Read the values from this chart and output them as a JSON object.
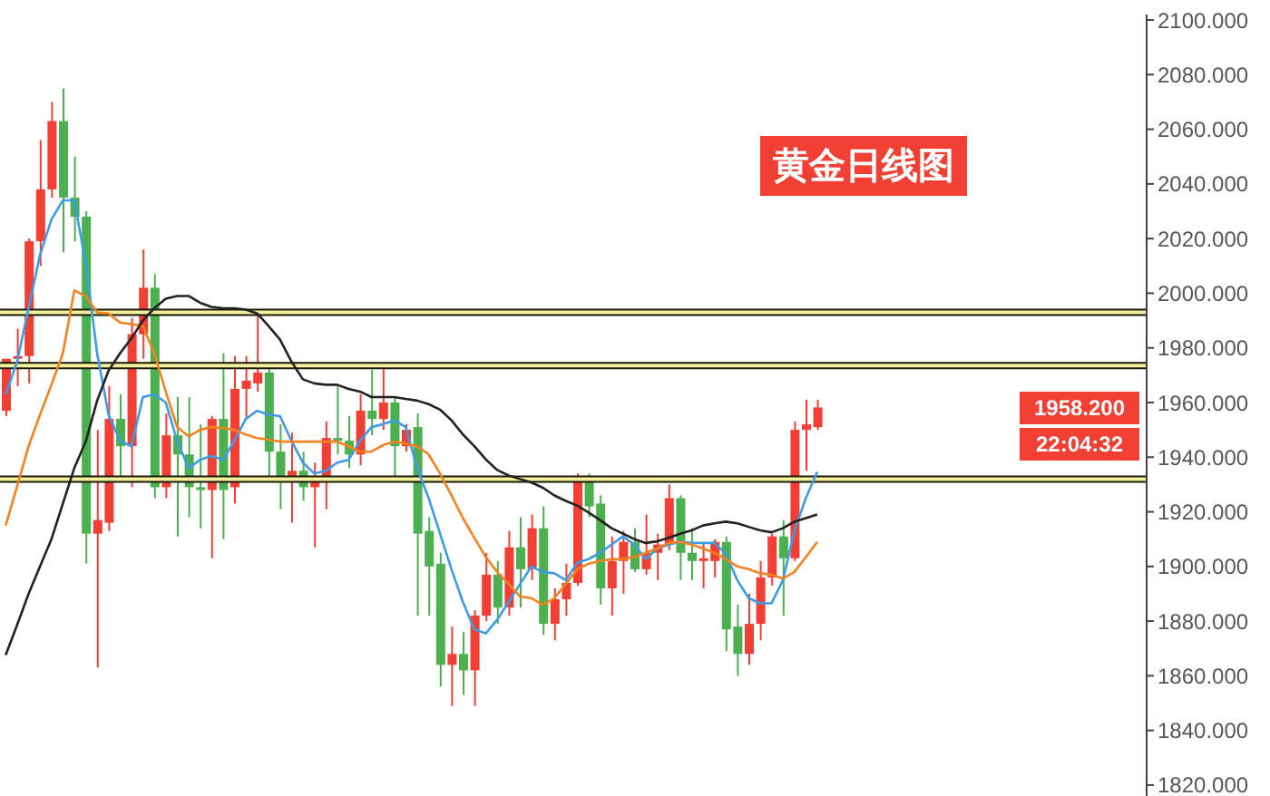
{
  "chart_data": {
    "type": "candlestick",
    "title": "黄金日线图",
    "categories": [
      null,
      null,
      null,
      null,
      null,
      null,
      null,
      null,
      null,
      null,
      null,
      null,
      null,
      null,
      null,
      null,
      null,
      null,
      null,
      null,
      null,
      null,
      null,
      null,
      null,
      null,
      null,
      null,
      null,
      null,
      null,
      null,
      null,
      null,
      null,
      null,
      null,
      null,
      null,
      null,
      null,
      null,
      null,
      null,
      null,
      null,
      null,
      null,
      null,
      null,
      null,
      null,
      null,
      null,
      null,
      null,
      null,
      null,
      null,
      null,
      null,
      null,
      null,
      null,
      null,
      null,
      null,
      null,
      null,
      null,
      null,
      null
    ],
    "ohlc": [
      [
        1957,
        1976,
        1955,
        1976
      ],
      [
        1976,
        1987,
        1966,
        1977
      ],
      [
        1977,
        2020,
        1967,
        2019
      ],
      [
        2019,
        2056,
        2010,
        2038
      ],
      [
        2038,
        2070,
        2035,
        2063
      ],
      [
        2063,
        2075,
        2015,
        2035
      ],
      [
        2035,
        2050,
        2019,
        2028
      ],
      [
        2028,
        2030,
        1901,
        1912
      ],
      [
        1912,
        1950,
        1863,
        1917
      ],
      [
        1916,
        1966,
        1913,
        1954
      ],
      [
        1954,
        1963,
        1932,
        1944
      ],
      [
        1944,
        1991,
        1929,
        1985
      ],
      [
        1985,
        2016,
        1976,
        2002
      ],
      [
        2002,
        2007,
        1925,
        1929
      ],
      [
        1929,
        1956,
        1925,
        1948
      ],
      [
        1948,
        1962,
        1911,
        1941
      ],
      [
        1941,
        1962,
        1918,
        1929
      ],
      [
        1929,
        1952,
        1914,
        1928
      ],
      [
        1928,
        1955,
        1903,
        1954
      ],
      [
        1954,
        1978,
        1910,
        1928
      ],
      [
        1929,
        1977,
        1923,
        1965
      ],
      [
        1965,
        1977,
        1954,
        1968
      ],
      [
        1967,
        1993,
        1964,
        1971
      ],
      [
        1971,
        1974,
        1933,
        1942
      ],
      [
        1942,
        1952,
        1921,
        1931
      ],
      [
        1931,
        1949,
        1916,
        1935
      ],
      [
        1935,
        1942,
        1924,
        1929
      ],
      [
        1929,
        1938,
        1907,
        1932
      ],
      [
        1932,
        1953,
        1921,
        1947
      ],
      [
        1947,
        1966,
        1941,
        1946
      ],
      [
        1946,
        1955,
        1936,
        1941
      ],
      [
        1941,
        1963,
        1937,
        1957
      ],
      [
        1957,
        1972,
        1948,
        1954
      ],
      [
        1954,
        1974,
        1950,
        1960
      ],
      [
        1960,
        1962,
        1933,
        1944
      ],
      [
        1944,
        1952,
        1942,
        1950
      ],
      [
        1951,
        1956,
        1882,
        1912
      ],
      [
        1913,
        1918,
        1882,
        1900
      ],
      [
        1901,
        1905,
        1856,
        1864
      ],
      [
        1864,
        1878,
        1849,
        1868
      ],
      [
        1868,
        1876,
        1853,
        1862
      ],
      [
        1862,
        1884,
        1849,
        1882
      ],
      [
        1882,
        1905,
        1880,
        1897
      ],
      [
        1897,
        1902,
        1879,
        1885
      ],
      [
        1885,
        1913,
        1882,
        1907
      ],
      [
        1907,
        1918,
        1885,
        1899
      ],
      [
        1899,
        1919,
        1895,
        1914
      ],
      [
        1914,
        1922,
        1875,
        1879
      ],
      [
        1879,
        1892,
        1873,
        1888
      ],
      [
        1888,
        1901,
        1882,
        1894
      ],
      [
        1894,
        1934,
        1893,
        1931
      ],
      [
        1931,
        1934,
        1918,
        1922
      ],
      [
        1923,
        1926,
        1886,
        1892
      ],
      [
        1892,
        1911,
        1882,
        1902
      ],
      [
        1902,
        1913,
        1890,
        1909
      ],
      [
        1909,
        1914,
        1898,
        1899
      ],
      [
        1899,
        1919,
        1897,
        1905
      ],
      [
        1905,
        1912,
        1895,
        1908
      ],
      [
        1908,
        1930,
        1906,
        1925
      ],
      [
        1925,
        1926,
        1895,
        1905
      ],
      [
        1905,
        1914,
        1895,
        1902
      ],
      [
        1902,
        1909,
        1892,
        1903
      ],
      [
        1902,
        1910,
        1896,
        1909
      ],
      [
        1909,
        1911,
        1869,
        1877
      ],
      [
        1878,
        1886,
        1860,
        1868
      ],
      [
        1868,
        1890,
        1864,
        1879
      ],
      [
        1879,
        1902,
        1873,
        1896
      ],
      [
        1896,
        1912,
        1893,
        1911
      ],
      [
        1911,
        1917,
        1882,
        1903
      ],
      [
        1903,
        1953,
        1902,
        1950
      ],
      [
        1950,
        1961,
        1935,
        1952
      ],
      [
        1951,
        1961,
        1950,
        1958.2
      ]
    ],
    "colors": [
      "#f23f33",
      "#f23f33",
      "#f23f33",
      "#f23f33",
      "#f23f33",
      "#4caf50",
      "#4caf50",
      "#4caf50",
      "#f23f33",
      "#f23f33",
      "#4caf50",
      "#f23f33",
      "#f23f33",
      "#4caf50",
      "#f23f33",
      "#4caf50",
      "#4caf50",
      "#4caf50",
      "#f23f33",
      "#4caf50",
      "#f23f33",
      "#f23f33",
      "#f23f33",
      "#4caf50",
      "#4caf50",
      "#f23f33",
      "#4caf50",
      "#f23f33",
      "#f23f33",
      "#4caf50",
      "#4caf50",
      "#f23f33",
      "#4caf50",
      "#f23f33",
      "#4caf50",
      "#f23f33",
      "#4caf50",
      "#4caf50",
      "#4caf50",
      "#f23f33",
      "#4caf50",
      "#f23f33",
      "#f23f33",
      "#4caf50",
      "#f23f33",
      "#4caf50",
      "#f23f33",
      "#4caf50",
      "#f23f33",
      "#f23f33",
      "#f23f33",
      "#4caf50",
      "#4caf50",
      "#f23f33",
      "#f23f33",
      "#4caf50",
      "#f23f33",
      "#f23f33",
      "#f23f33",
      "#4caf50",
      "#4caf50",
      "#f23f33",
      "#f23f33",
      "#4caf50",
      "#4caf50",
      "#f23f33",
      "#f23f33",
      "#f23f33",
      "#4caf50",
      "#f23f33",
      "#f23f33",
      "#f23f33"
    ],
    "series": [
      {
        "type": "line",
        "color": "#3d9be9",
        "values": [
          1963,
          1975,
          1994.5,
          2014,
          2027,
          2034,
          2034,
          2011,
          1978,
          1955.5,
          1946,
          1944,
          1962,
          1963,
          1960,
          1946,
          1936,
          1939,
          1940.5,
          1939,
          1946,
          1954,
          1957,
          1955.5,
          1955,
          1946,
          1938,
          1934,
          1935,
          1938,
          1939,
          1946,
          1951,
          1952,
          1953.5,
          1951,
          1936,
          1925,
          1912,
          1899,
          1887,
          1877,
          1875.5,
          1880.5,
          1887,
          1893.6,
          1900,
          1898,
          1897.5,
          1895,
          1901.4,
          1902.7,
          1905,
          1908,
          1911,
          1908,
          1902.7,
          1906.6,
          1908,
          1909,
          1908.6,
          1908.6,
          1908.6,
          1904.7,
          1895,
          1888.4,
          1886.5,
          1886.5,
          1895,
          1913,
          1925,
          1934.6
        ]
      },
      {
        "type": "line",
        "color": "#f5821f",
        "values": [
          1915,
          1929.4,
          1944,
          1955.5,
          1966.5,
          1978,
          2001,
          1999,
          1993,
          1992.6,
          1989.3,
          1988.7,
          1988,
          1978,
          1964,
          1951,
          1947.6,
          1950,
          1951,
          1950.7,
          1950,
          1948.3,
          1947,
          1946.4,
          1945.7,
          1945.7,
          1945.7,
          1945.7,
          1945.7,
          1945.7,
          1944,
          1942,
          1942,
          1944.4,
          1945.7,
          1945,
          1944,
          1941,
          1934,
          1926,
          1917.7,
          1910.5,
          1903.4,
          1898,
          1893.6,
          1889,
          1888.4,
          1886,
          1888.4,
          1893.6,
          1899,
          1901,
          1902,
          1902.7,
          1902.7,
          1903.4,
          1905,
          1906.6,
          1908.6,
          1909,
          1908,
          1906.6,
          1905,
          1902.7,
          1900,
          1899,
          1897.5,
          1897,
          1895.6,
          1898,
          1903.4,
          1909
        ]
      },
      {
        "type": "line",
        "color": "#222222",
        "values": [
          1867.6,
          1878.6,
          1890,
          1900,
          1910,
          1923,
          1936,
          1945.7,
          1960.7,
          1971.7,
          1978,
          1983.5,
          1990,
          1994.5,
          1998,
          1999,
          1999,
          1996.5,
          1995,
          1994.5,
          1994.5,
          1994,
          1992.6,
          1988,
          1983,
          1975,
          1968.5,
          1967,
          1966.5,
          1966.5,
          1965,
          1964,
          1962,
          1962,
          1962,
          1961.3,
          1960.7,
          1959.4,
          1957.4,
          1953.5,
          1948.3,
          1944,
          1939.2,
          1935.3,
          1933.3,
          1932,
          1930.7,
          1928.8,
          1926,
          1924,
          1922.3,
          1919.7,
          1917,
          1914,
          1912,
          1910,
          1908.6,
          1909.2,
          1910.5,
          1912,
          1913.2,
          1915,
          1915.8,
          1916.4,
          1915.8,
          1914.5,
          1913.2,
          1912.5,
          1914,
          1916.4,
          1917.7,
          1919
        ]
      }
    ],
    "ylim": [
      1816,
      2102
    ],
    "yticks": [
      {
        "value": 1820,
        "label": "1820.000"
      },
      {
        "value": 1840,
        "label": "1840.000"
      },
      {
        "value": 1860,
        "label": "1860.000"
      },
      {
        "value": 1880,
        "label": "1880.000"
      },
      {
        "value": 1900,
        "label": "1900.000"
      },
      {
        "value": 1920,
        "label": "1920.000"
      },
      {
        "value": 1940,
        "label": "1940.000"
      },
      {
        "value": 1960,
        "label": "1960.000"
      },
      {
        "value": 1980,
        "label": "1980.000"
      },
      {
        "value": 2000,
        "label": "2000.000"
      },
      {
        "value": 2020,
        "label": "2020.000"
      },
      {
        "value": 2040,
        "label": "2040.000"
      },
      {
        "value": 2060,
        "label": "2060.000"
      },
      {
        "value": 2080,
        "label": "2080.000"
      },
      {
        "value": 2100,
        "label": "2100.000"
      }
    ],
    "ref_lines": [
      {
        "axis": "y",
        "value": 1993,
        "color": "#f5f0a0"
      },
      {
        "axis": "y",
        "value": 1973.5,
        "color": "#f5f0a0"
      },
      {
        "axis": "y",
        "value": 1932,
        "color": "#f5f0a0"
      }
    ],
    "annotations": [
      "1958.200",
      "22:04:32"
    ],
    "marker": "none",
    "tick_labels": "y"
  }
}
